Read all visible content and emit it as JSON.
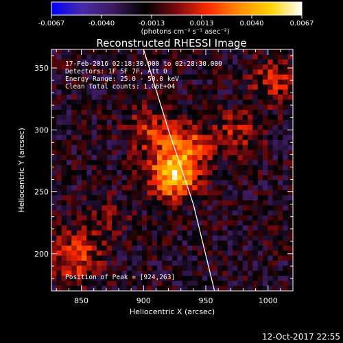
{
  "colorbar": {
    "ticks": [
      "-0.0067",
      "-0.0040",
      "-0.0013",
      "0.0013",
      "0.0040",
      "0.0067"
    ],
    "unit_label": "(photons cm⁻² s⁻¹ asec⁻²)",
    "stops": [
      "#0000ff",
      "#4a2aa6",
      "#3a1a5a",
      "#000000",
      "#7a0a10",
      "#ff2a00",
      "#ff8c00",
      "#ffd400",
      "#ffffff"
    ]
  },
  "chart_data": {
    "type": "heatmap",
    "title": "Reconstructed RHESSI Image",
    "xlabel": "Heliocentric X (arcsec)",
    "ylabel": "Heliocentric Y (arcsec)",
    "xlim": [
      826,
      1020
    ],
    "ylim": [
      170,
      365
    ],
    "xticks": [
      "850",
      "900",
      "950",
      "1000"
    ],
    "yticks": [
      "200",
      "250",
      "300",
      "350"
    ],
    "xtick_values": [
      850,
      900,
      950,
      1000
    ],
    "ytick_values": [
      200,
      250,
      300,
      350
    ],
    "value_range": [
      -0.0067,
      0.0067
    ],
    "peak": [
      924,
      263
    ],
    "limb_curve_x": [
      900,
      920,
      940,
      957
    ],
    "limb_curve_y": [
      365,
      300,
      240,
      170
    ],
    "sources": [
      {
        "x": 924,
        "y": 263,
        "amplitude": 0.0067
      },
      {
        "x": 935,
        "y": 288,
        "amplitude": 0.0036
      },
      {
        "x": 905,
        "y": 298,
        "amplitude": 0.0028
      },
      {
        "x": 975,
        "y": 296,
        "amplitude": 0.0024
      },
      {
        "x": 1005,
        "y": 340,
        "amplitude": 0.0026
      },
      {
        "x": 845,
        "y": 198,
        "amplitude": 0.0038
      },
      {
        "x": 872,
        "y": 225,
        "amplitude": 0.0012
      }
    ],
    "annotations": {
      "time_range": "17-Feb-2016 02:18:30.000 to 02:28:30.000",
      "detectors": "Detectors: 1F 5F 7F, Att 0",
      "energy": "Energy Range: 25.0 - 50.0 keV",
      "method": "Clean    Total counts: 1.06E+04",
      "peak_text": "Position of Peak = [924,263]"
    }
  },
  "footer": {
    "date": "12-Oct-2017 22:55"
  }
}
